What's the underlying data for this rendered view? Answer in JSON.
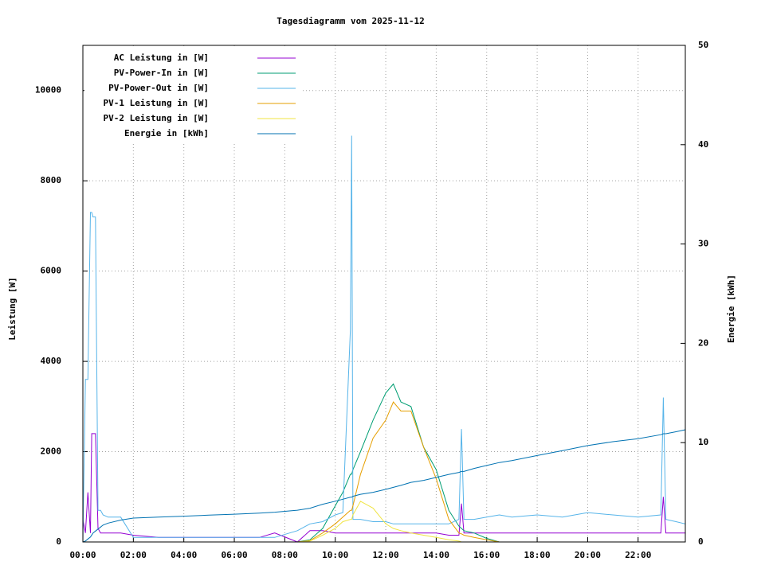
{
  "chart_data": {
    "type": "line",
    "title": "Tagesdiagramm vom 2025-11-12",
    "ylabel": "Leistung [W]",
    "y2label": "Energie [kWh]",
    "x": [
      0,
      0.1,
      0.2,
      0.3,
      0.35,
      0.4,
      0.5,
      0.6,
      0.7,
      0.75,
      0.8,
      1,
      1.5,
      2,
      3,
      4,
      5,
      6,
      7,
      7.6,
      8.5,
      9,
      9.5,
      10,
      10.3,
      10.6,
      10.65,
      10.7,
      11,
      11.5,
      12,
      12.3,
      12.6,
      13,
      13.5,
      14,
      14.5,
      14.9,
      15,
      15.1,
      15.5,
      16,
      16.5,
      17,
      18,
      19,
      20,
      21,
      22,
      22.9,
      23,
      23.1,
      23.5,
      23.87
    ],
    "xlim": [
      0,
      23.87
    ],
    "xticks": [
      {
        "value": 0,
        "label": "00:00"
      },
      {
        "value": 2,
        "label": "02:00"
      },
      {
        "value": 4,
        "label": "04:00"
      },
      {
        "value": 6,
        "label": "06:00"
      },
      {
        "value": 8,
        "label": "08:00"
      },
      {
        "value": 10,
        "label": "10:00"
      },
      {
        "value": 12,
        "label": "12:00"
      },
      {
        "value": 14,
        "label": "14:00"
      },
      {
        "value": 16,
        "label": "16:00"
      },
      {
        "value": 18,
        "label": "18:00"
      },
      {
        "value": 20,
        "label": "20:00"
      },
      {
        "value": 22,
        "label": "22:00"
      }
    ],
    "ylim": [
      0,
      11000
    ],
    "yticks": [
      0,
      2000,
      4000,
      6000,
      8000,
      10000
    ],
    "y2lim": [
      0,
      50
    ],
    "y2ticks": [
      0,
      10,
      20,
      30,
      40,
      50
    ],
    "grid": true,
    "legend": "top-left",
    "series": [
      {
        "name": "AC Leistung in [W]",
        "color": "#9400d3",
        "values": [
          500,
          200,
          1100,
          200,
          2400,
          2400,
          2400,
          300,
          200,
          200,
          200,
          200,
          200,
          150,
          100,
          100,
          100,
          100,
          100,
          200,
          0,
          250,
          250,
          200,
          200,
          200,
          200,
          200,
          200,
          200,
          200,
          200,
          200,
          200,
          200,
          200,
          150,
          150,
          850,
          200,
          200,
          200,
          200,
          200,
          200,
          200,
          200,
          200,
          200,
          200,
          1000,
          200,
          200,
          200
        ]
      },
      {
        "name": "PV-Power-In in [W]",
        "color": "#009e73",
        "values": [
          0,
          0,
          0,
          0,
          0,
          0,
          0,
          0,
          0,
          0,
          0,
          0,
          0,
          0,
          0,
          0,
          0,
          0,
          0,
          0,
          0,
          50,
          300,
          800,
          1100,
          1500,
          1500,
          1600,
          2000,
          2700,
          3300,
          3500,
          3100,
          3000,
          2100,
          1600,
          700,
          350,
          300,
          250,
          200,
          80,
          0,
          0,
          0,
          0,
          0,
          0,
          0,
          0,
          0,
          0,
          0,
          0
        ]
      },
      {
        "name": "PV-Power-Out in [W]",
        "color": "#56b4e9",
        "values": [
          0,
          3600,
          3600,
          7300,
          7300,
          7200,
          7200,
          700,
          700,
          650,
          600,
          550,
          550,
          100,
          100,
          100,
          100,
          100,
          100,
          100,
          250,
          400,
          450,
          600,
          650,
          4700,
          9000,
          500,
          500,
          450,
          450,
          400,
          400,
          400,
          400,
          400,
          400,
          500,
          2500,
          500,
          500,
          550,
          600,
          550,
          600,
          550,
          650,
          600,
          550,
          600,
          3200,
          500,
          450,
          400
        ]
      },
      {
        "name": "PV-1 Leistung in [W]",
        "color": "#e69f00",
        "values": [
          0,
          0,
          0,
          0,
          0,
          0,
          0,
          0,
          0,
          0,
          0,
          0,
          0,
          0,
          0,
          0,
          0,
          0,
          0,
          0,
          0,
          30,
          200,
          400,
          550,
          700,
          700,
          800,
          1500,
          2300,
          2700,
          3100,
          2900,
          2900,
          2100,
          1400,
          500,
          200,
          180,
          150,
          100,
          50,
          0,
          0,
          0,
          0,
          0,
          0,
          0,
          0,
          0,
          0,
          0,
          0
        ]
      },
      {
        "name": "PV-2 Leistung in [W]",
        "color": "#f0e442",
        "values": [
          0,
          0,
          0,
          0,
          0,
          0,
          0,
          0,
          0,
          0,
          0,
          0,
          0,
          0,
          0,
          0,
          0,
          0,
          0,
          0,
          0,
          20,
          150,
          300,
          450,
          500,
          500,
          600,
          900,
          750,
          400,
          300,
          250,
          200,
          150,
          100,
          50,
          20,
          0,
          0,
          0,
          0,
          0,
          0,
          0,
          0,
          0,
          0,
          0,
          0,
          0,
          0,
          0,
          0
        ]
      },
      {
        "name": "Energie in [kWh]",
        "color": "#0072b2",
        "axis": "y2",
        "values": [
          0,
          0.1,
          0.3,
          0.5,
          0.7,
          0.9,
          1.1,
          1.3,
          1.5,
          1.6,
          1.7,
          1.9,
          2.2,
          2.4,
          2.5,
          2.6,
          2.7,
          2.8,
          2.9,
          3.0,
          3.2,
          3.4,
          3.8,
          4.1,
          4.3,
          4.5,
          4.5,
          4.6,
          4.8,
          5.0,
          5.3,
          5.5,
          5.7,
          6.0,
          6.2,
          6.5,
          6.8,
          7.0,
          7.1,
          7.1,
          7.4,
          7.7,
          8.0,
          8.2,
          8.7,
          9.2,
          9.7,
          10.1,
          10.4,
          10.8,
          10.9,
          10.9,
          11.1,
          11.3
        ]
      }
    ]
  }
}
